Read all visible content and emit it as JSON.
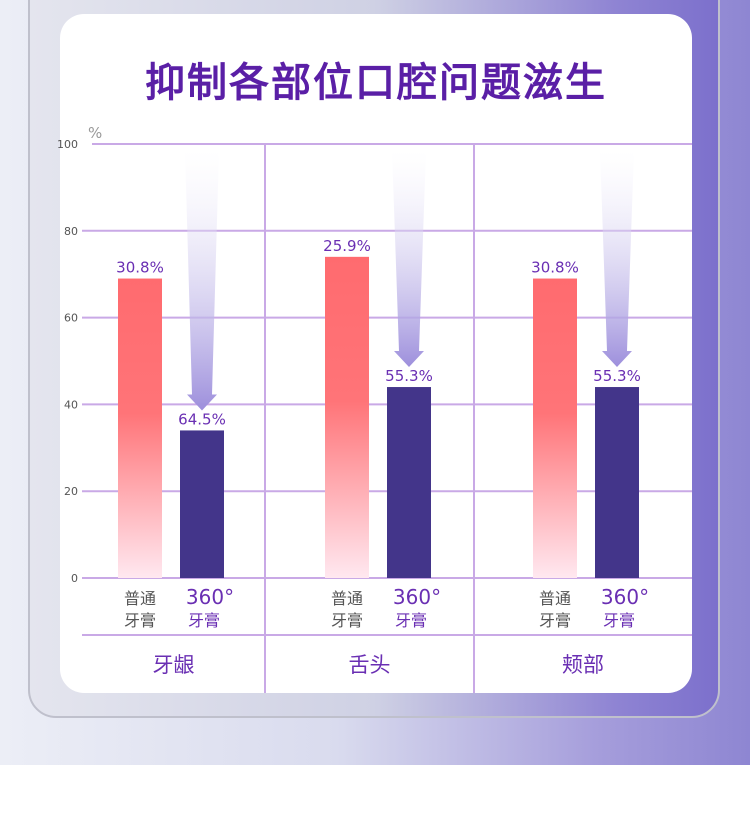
{
  "title": "抑制各部位口腔问题滋生",
  "chart_data": {
    "type": "bar",
    "title": "抑制各部位口腔问题滋生",
    "ylabel": "%",
    "ylim": [
      0,
      100
    ],
    "yticks": [
      "0",
      "20",
      "40",
      "60",
      "80",
      "100"
    ],
    "grid": true,
    "categories": [
      "牙龈",
      "舌头",
      "颊部"
    ],
    "bar_labels": [
      "普通\n牙膏",
      "360°\n牙膏"
    ],
    "series": [
      {
        "name": "普通牙膏",
        "label_lines": [
          "普通",
          "牙膏"
        ],
        "values": [
          69,
          74,
          69
        ],
        "data_labels": [
          "30.8%",
          "25.9%",
          "30.8%"
        ],
        "color": "#ff6b6f"
      },
      {
        "name": "360°牙膏",
        "label_lines": [
          "360°",
          "牙膏"
        ],
        "values": [
          34,
          44,
          44
        ],
        "data_labels": [
          "64.5%",
          "55.3%",
          "55.3%"
        ],
        "color": "#43358a"
      }
    ],
    "colors": {
      "grid": "#c9a9e6",
      "accent": "#6a2fb3",
      "arrow": "#9d8fdc"
    }
  }
}
